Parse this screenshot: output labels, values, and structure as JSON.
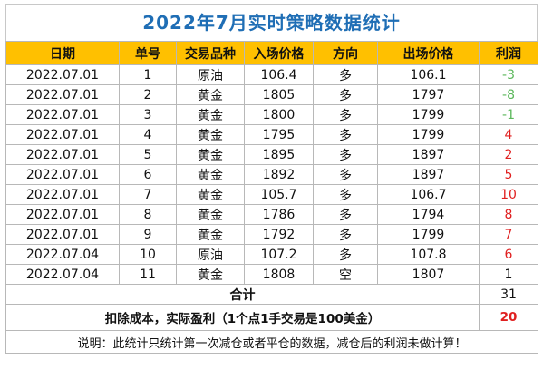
{
  "title": "2022年7月实时策略数据统计",
  "headers": [
    "日期",
    "单号",
    "交易品种",
    "入场价格",
    "方向",
    "出场价格",
    "利润"
  ],
  "rows": [
    {
      "date": "2022.07.01",
      "no": "1",
      "product": "原油",
      "entry": "106.4",
      "dir": "多",
      "exit": "106.1",
      "profit": "-3",
      "tone": "neg"
    },
    {
      "date": "2022.07.01",
      "no": "2",
      "product": "黄金",
      "entry": "1805",
      "dir": "多",
      "exit": "1797",
      "profit": "-8",
      "tone": "neg"
    },
    {
      "date": "2022.07.01",
      "no": "3",
      "product": "黄金",
      "entry": "1800",
      "dir": "多",
      "exit": "1799",
      "profit": "-1",
      "tone": "neg"
    },
    {
      "date": "2022.07.01",
      "no": "4",
      "product": "黄金",
      "entry": "1795",
      "dir": "多",
      "exit": "1799",
      "profit": "4",
      "tone": "pos"
    },
    {
      "date": "2022.07.01",
      "no": "5",
      "product": "黄金",
      "entry": "1895",
      "dir": "多",
      "exit": "1897",
      "profit": "2",
      "tone": "pos"
    },
    {
      "date": "2022.07.01",
      "no": "6",
      "product": "黄金",
      "entry": "1892",
      "dir": "多",
      "exit": "1897",
      "profit": "5",
      "tone": "pos"
    },
    {
      "date": "2022.07.01",
      "no": "7",
      "product": "黄金",
      "entry": "105.7",
      "dir": "多",
      "exit": "106.7",
      "profit": "10",
      "tone": "pos"
    },
    {
      "date": "2022.07.01",
      "no": "8",
      "product": "黄金",
      "entry": "1786",
      "dir": "多",
      "exit": "1794",
      "profit": "8",
      "tone": "pos"
    },
    {
      "date": "2022.07.01",
      "no": "9",
      "product": "黄金",
      "entry": "1792",
      "dir": "多",
      "exit": "1799",
      "profit": "7",
      "tone": "pos"
    },
    {
      "date": "2022.07.04",
      "no": "10",
      "product": "原油",
      "entry": "107.2",
      "dir": "多",
      "exit": "107.8",
      "profit": "6",
      "tone": "pos"
    },
    {
      "date": "2022.07.04",
      "no": "11",
      "product": "黄金",
      "entry": "1808",
      "dir": "空",
      "exit": "1807",
      "profit": "1",
      "tone": "neu"
    }
  ],
  "total": {
    "label": "合计",
    "value": "31"
  },
  "net": {
    "label": "扣除成本，实际盈利（1个点1手交易是100美金）",
    "value": "20"
  },
  "note": "说明：此统计只统计第一次减仓或者平仓的数据，减仓后的利润未做计算！",
  "colors": {
    "title": "#1f6eb5",
    "header_bg": "#ffc000",
    "profit_positive": "#e02020",
    "profit_negative": "#5cb85c"
  }
}
